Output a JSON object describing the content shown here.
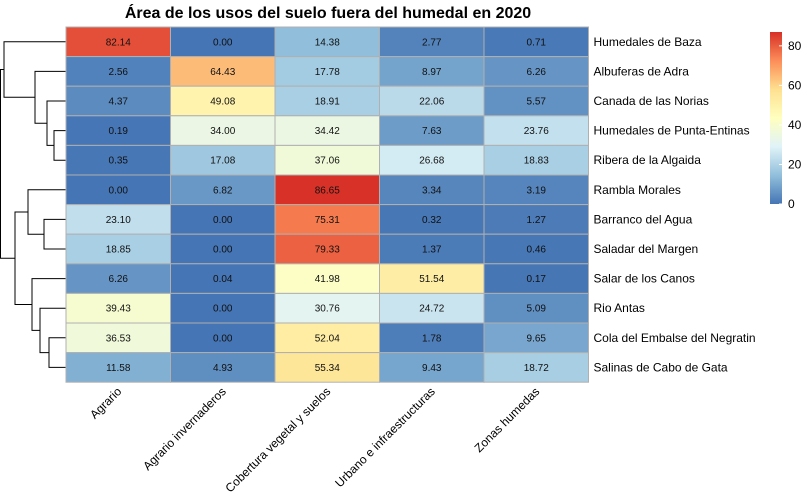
{
  "chart_data": {
    "type": "heatmap",
    "title": "Área de los usos del suelo fuera del humedal en 2020",
    "columns": [
      "Agrario",
      "Agrario invernaderos",
      "Cobertura vegetal y suelos",
      "Urbano e infraestructuras",
      "Zonas humedas"
    ],
    "rows": [
      "Humedales de Baza",
      "Albuferas de Adra",
      "Canada de las Norias",
      "Humedales de Punta-Entinas",
      "Ribera de la Algaida",
      "Rambla Morales",
      "Barranco del Agua",
      "Saladar del Margen",
      "Salar de los Canos",
      "Rio Antas",
      "Cola del Embalse del Negratin",
      "Salinas de Cabo de Gata"
    ],
    "values": [
      [
        82.14,
        0.0,
        14.38,
        2.77,
        0.71
      ],
      [
        2.56,
        64.43,
        17.78,
        8.97,
        6.26
      ],
      [
        4.37,
        49.08,
        18.91,
        22.06,
        5.57
      ],
      [
        0.19,
        34.0,
        34.42,
        7.63,
        23.76
      ],
      [
        0.35,
        17.08,
        37.06,
        26.68,
        18.83
      ],
      [
        0.0,
        6.82,
        86.65,
        3.34,
        3.19
      ],
      [
        23.1,
        0.0,
        75.31,
        0.32,
        1.27
      ],
      [
        18.85,
        0.0,
        79.33,
        1.37,
        0.46
      ],
      [
        6.26,
        0.04,
        41.98,
        51.54,
        0.17
      ],
      [
        39.43,
        0.0,
        30.76,
        24.72,
        5.09
      ],
      [
        36.53,
        0.0,
        52.04,
        1.78,
        9.65
      ],
      [
        11.58,
        4.93,
        55.34,
        9.43,
        18.72
      ]
    ],
    "legend": {
      "ticks": [
        0,
        20,
        40,
        60,
        80
      ],
      "range": [
        0,
        87
      ],
      "colors": [
        "#4575b4",
        "#91bfdb",
        "#e0f3f8",
        "#ffffbf",
        "#fee090",
        "#fc8d59",
        "#d73027"
      ],
      "placement": "right"
    },
    "row_dendrogram": true
  }
}
